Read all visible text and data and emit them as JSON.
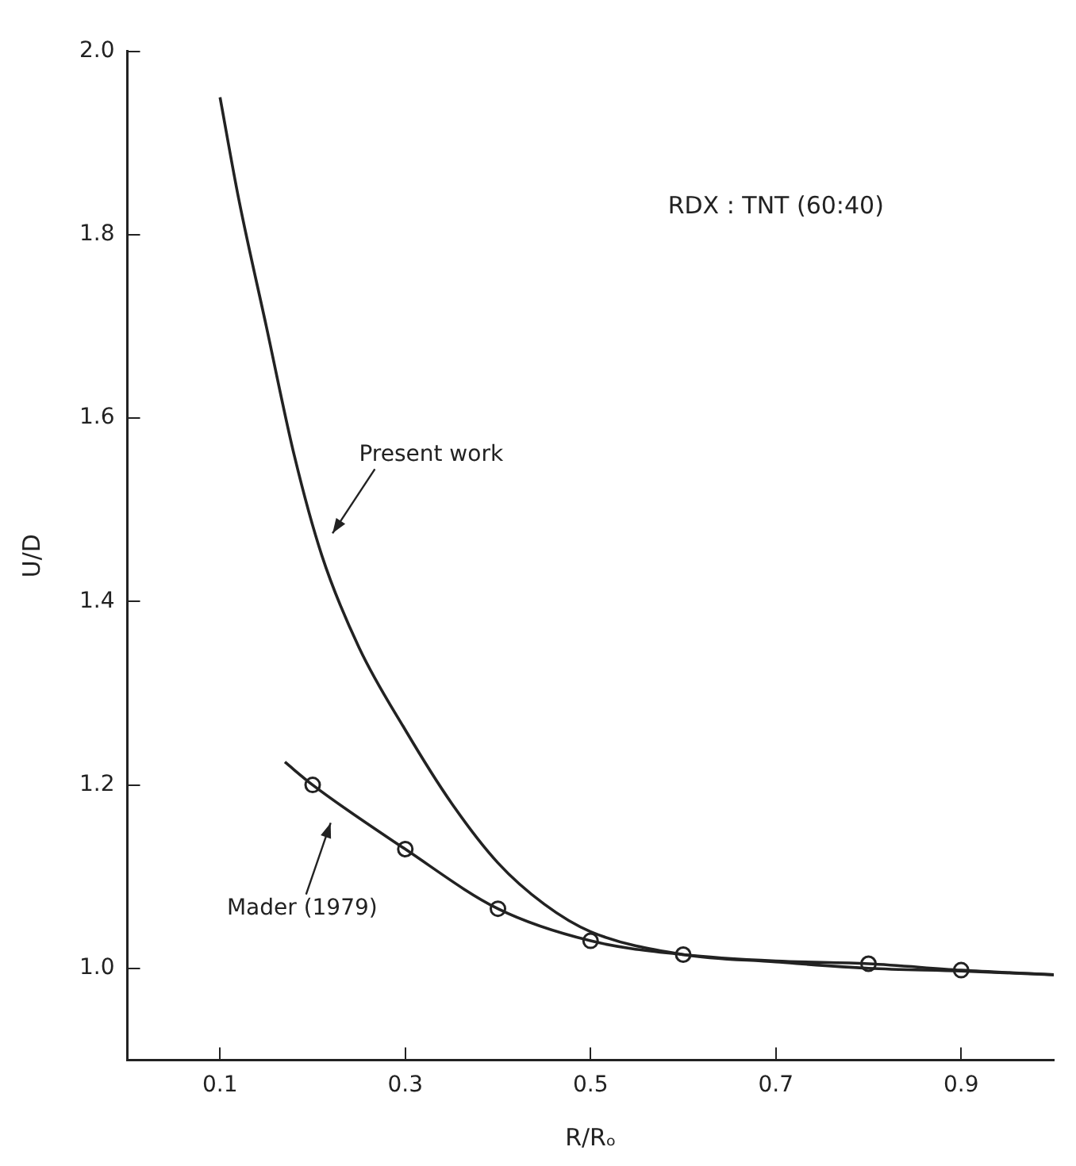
{
  "chart_data": {
    "type": "line",
    "xlabel": "R/Rₒ",
    "ylabel": "U/D",
    "annotations": [
      "RDX : TNT (60:40)"
    ],
    "xlim": [
      0,
      1
    ],
    "ylim": [
      0.9,
      2.0
    ],
    "xticks": [
      0.1,
      0.3,
      0.5,
      0.7,
      0.9
    ],
    "yticks": [
      {
        "value": 1.0,
        "label": "1.0"
      },
      1.2,
      1.4,
      1.6,
      1.8,
      {
        "value": 2.0,
        "label": "2.0"
      }
    ],
    "grid": false,
    "legend": false,
    "line_style": "solid",
    "series": [
      {
        "name": "Present work",
        "color": "#222222",
        "marker": "none",
        "x": [
          0.1,
          0.12,
          0.15,
          0.18,
          0.21,
          0.25,
          0.3,
          0.35,
          0.4,
          0.45,
          0.5,
          0.6,
          0.7,
          0.8,
          0.9,
          1.0
        ],
        "values": [
          1.95,
          1.84,
          1.7,
          1.56,
          1.45,
          1.35,
          1.26,
          1.18,
          1.115,
          1.07,
          1.04,
          1.015,
          1.007,
          1.0,
          0.997,
          0.993
        ]
      },
      {
        "name": "Mader (1979)",
        "color": "#222222",
        "marker": "none",
        "x": [
          0.17,
          0.2,
          0.3,
          0.4,
          0.5,
          0.6,
          0.7,
          0.8,
          0.9,
          1.0
        ],
        "values": [
          1.225,
          1.2,
          1.13,
          1.065,
          1.03,
          1.015,
          1.008,
          1.005,
          0.998,
          0.993
        ]
      },
      {
        "type": "scatter",
        "color": "#222222",
        "marker": "circle",
        "x": [
          0.2,
          0.3,
          0.4,
          0.5,
          0.6,
          0.8,
          0.9
        ],
        "values": [
          1.2,
          1.13,
          1.065,
          1.03,
          1.015,
          1.005,
          0.998
        ]
      }
    ]
  }
}
